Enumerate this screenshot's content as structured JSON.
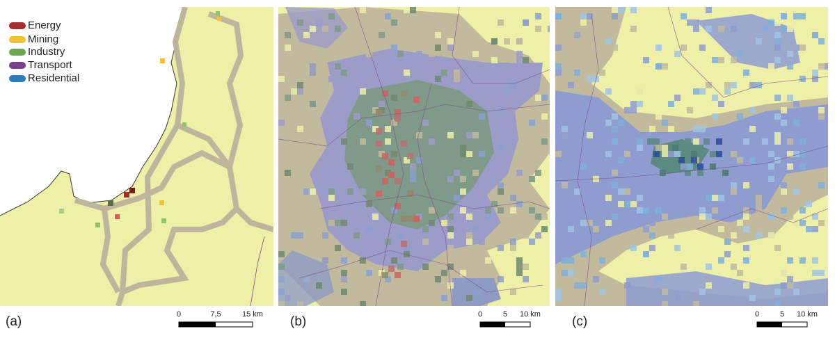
{
  "legend": [
    {
      "label": "Energy",
      "color": "#a3302e"
    },
    {
      "label": "Mining",
      "color": "#f2c230"
    },
    {
      "label": "Industry",
      "color": "#6aa84f"
    },
    {
      "label": "Transport",
      "color": "#7b3f8c"
    },
    {
      "label": "Residential",
      "color": "#2b7bc0"
    }
  ],
  "panels": [
    {
      "label": "(a)",
      "scale_labels": [
        "0",
        "7,5",
        "15 km"
      ]
    },
    {
      "label": "(b)",
      "scale_labels": [
        "0",
        "5",
        "10 km"
      ]
    },
    {
      "label": "(c)",
      "scale_labels": [
        "0",
        "5",
        "10 km"
      ]
    }
  ]
}
